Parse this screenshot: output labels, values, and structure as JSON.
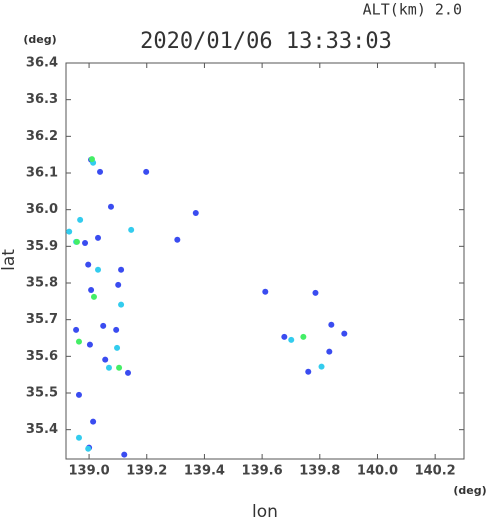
{
  "chart_data": {
    "type": "scatter",
    "title": "2020/01/06 13:33:03",
    "subtitle": "ALT(km)  2.0",
    "xlabel": "lon",
    "ylabel": "lat",
    "x_unit": "(deg)",
    "y_unit": "(deg)",
    "xlim": [
      138.92,
      140.3
    ],
    "ylim": [
      35.32,
      36.4
    ],
    "xticks": [
      {
        "value": 139,
        "label": "139.0"
      },
      139.2,
      139.4,
      139.6,
      139.8,
      {
        "value": 140,
        "label": "140.0"
      },
      140.2
    ],
    "yticks": [
      36.4,
      36.3,
      36.2,
      36.1,
      {
        "value": 36,
        "label": "36.0"
      },
      35.9,
      35.8,
      35.7,
      35.6,
      35.5,
      35.4
    ],
    "series": [
      {
        "color": "#3a4cf0",
        "x": [
          139.007,
          139.038,
          139.198,
          139.076,
          139.37,
          139.031,
          138.986,
          139.306,
          138.997,
          139.111,
          139.007,
          139.101,
          139.611,
          139.785,
          138.955,
          139.049,
          139.094,
          139.003,
          139.056,
          139.135,
          139.677,
          139.84,
          139.885,
          139.76,
          139.833,
          139.014,
          139.0,
          139.122,
          138.965
        ],
        "y": [
          36.136,
          36.103,
          36.103,
          36.008,
          35.991,
          35.923,
          35.909,
          35.918,
          35.85,
          35.836,
          35.781,
          35.795,
          35.776,
          35.773,
          35.672,
          35.683,
          35.672,
          35.632,
          35.591,
          35.555,
          35.653,
          35.686,
          35.662,
          35.558,
          35.613,
          35.422,
          35.351,
          35.332,
          35.495
        ]
      },
      {
        "color": "#33ccee",
        "x": [
          139.014,
          138.969,
          138.931,
          138.955,
          139.146,
          139.031,
          139.111,
          139.097,
          139.069,
          139.806,
          139.701,
          138.965,
          138.997
        ],
        "y": [
          36.128,
          35.972,
          35.94,
          35.912,
          35.945,
          35.836,
          35.741,
          35.623,
          35.569,
          35.572,
          35.645,
          35.378,
          35.348
        ]
      },
      {
        "color": "#44ee66",
        "x": [
          139.01,
          138.958,
          139.017,
          138.965,
          139.104,
          139.743
        ],
        "y": [
          36.138,
          35.912,
          35.762,
          35.64,
          35.569,
          35.653
        ]
      }
    ]
  }
}
